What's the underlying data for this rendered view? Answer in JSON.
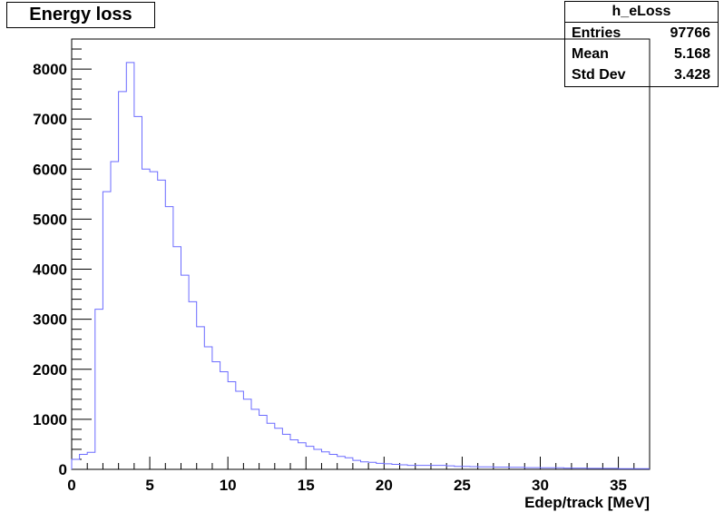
{
  "title": "Energy loss",
  "stats": {
    "name": "h_eLoss",
    "rows": [
      {
        "label": "Entries",
        "value": "97766"
      },
      {
        "label": "Mean",
        "value": "5.168"
      },
      {
        "label": "Std Dev",
        "value": "3.428"
      }
    ]
  },
  "colors": {
    "histogram": "#6b6bff",
    "axis": "#000000"
  },
  "chart_data": {
    "type": "histogram",
    "title": "Energy loss",
    "xlabel": "Edep/track [MeV]",
    "ylabel": "",
    "xlim": [
      0,
      37
    ],
    "ylim": [
      0,
      8600
    ],
    "grid": false,
    "x_ticks": [
      0,
      5,
      10,
      15,
      20,
      25,
      30,
      35
    ],
    "y_ticks": [
      0,
      1000,
      2000,
      3000,
      4000,
      5000,
      6000,
      7000,
      8000
    ],
    "bin_width": 0.5,
    "bin_edges_start": 0,
    "values": [
      200,
      300,
      340,
      3200,
      5550,
      6150,
      7550,
      8130,
      7050,
      6000,
      5950,
      5780,
      5250,
      4450,
      3880,
      3350,
      2850,
      2450,
      2150,
      1950,
      1750,
      1560,
      1400,
      1200,
      1080,
      920,
      820,
      700,
      590,
      530,
      460,
      400,
      350,
      300,
      260,
      230,
      180,
      150,
      140,
      120,
      110,
      100,
      90,
      80,
      80,
      80,
      80,
      80,
      70,
      60,
      60,
      55,
      50,
      50,
      45,
      45,
      40,
      40,
      35,
      35,
      30,
      30,
      30,
      25,
      25,
      25,
      20,
      20,
      20,
      20,
      15,
      15,
      15,
      15
    ]
  }
}
